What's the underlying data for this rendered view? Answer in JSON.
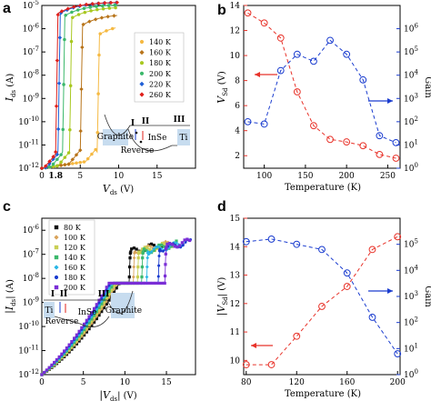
{
  "panel_labels": [
    "a",
    "b",
    "c",
    "d"
  ],
  "colors": {
    "140K": "#f5b942",
    "160K": "#b8741a",
    "180K": "#a8c820",
    "200K": "#3bb86b",
    "220K": "#1f5fd6",
    "260K": "#e0201b",
    "80K": "#111111",
    "100K": "#d9a35a",
    "120K": "#c9cf55",
    "red": "#e8332a",
    "blue": "#1a3ccf",
    "purple": "#7a2ed6",
    "cyan": "#29b6e6"
  },
  "chart_data": [
    {
      "id": "a",
      "type": "line",
      "ylabel": "I_ds (A)",
      "xlabel": "V_ds (V)",
      "y_scale": "log",
      "xlim": [
        0,
        20
      ],
      "ylim": [
        -12,
        -5
      ],
      "x_ticks": [
        "0",
        "5",
        "10",
        "15"
      ],
      "y_ticks": [
        "10^-12",
        "10^-11",
        "10^-10",
        "10^-9",
        "10^-8",
        "10^-7",
        "10^-6",
        "10^-5"
      ],
      "annotations": [
        "1.8"
      ],
      "inset_labels": [
        "Graphite",
        "InSe",
        "Ti",
        "I",
        "II",
        "III",
        "Reverse"
      ],
      "series": [
        {
          "name": "140 K",
          "jump_v": 7.2,
          "sat_start": -6.3
        },
        {
          "name": "160 K",
          "jump_v": 5.0,
          "sat_start": -5.9
        },
        {
          "name": "180 K",
          "jump_v": 3.6,
          "sat_start": -5.6
        },
        {
          "name": "200 K",
          "jump_v": 2.7,
          "sat_start": -5.5
        },
        {
          "name": "220 K",
          "jump_v": 2.1,
          "sat_start": -5.4
        },
        {
          "name": "260 K",
          "jump_v": 1.8,
          "sat_start": -5.4
        }
      ]
    },
    {
      "id": "b",
      "type": "line",
      "xlabel": "Temperature (K)",
      "ylabel_left": "V_Sd (V)",
      "ylabel_right": "Gain",
      "xlim": [
        75,
        265
      ],
      "ylim_left": [
        1,
        14
      ],
      "ylim_right": [
        0,
        7
      ],
      "x_ticks": [
        100,
        150,
        200,
        250
      ],
      "y_ticks_left": [
        2,
        4,
        6,
        8,
        10,
        12,
        14
      ],
      "y_ticks_right": [
        "10^0",
        "10^1",
        "10^2",
        "10^3",
        "10^4",
        "10^5",
        "10^6"
      ],
      "series": [
        {
          "name": "V_Sd",
          "axis": "left",
          "x": [
            80,
            100,
            120,
            140,
            160,
            180,
            200,
            220,
            240,
            260
          ],
          "y": [
            13.4,
            12.6,
            11.4,
            7.1,
            4.4,
            3.3,
            3.1,
            2.8,
            2.1,
            1.8
          ]
        },
        {
          "name": "Gain",
          "axis": "right",
          "x": [
            80,
            100,
            120,
            140,
            160,
            180,
            200,
            220,
            240,
            260
          ],
          "y": [
            2.0,
            1.9,
            4.2,
            4.9,
            4.6,
            5.5,
            4.9,
            3.8,
            1.4,
            1.1
          ]
        }
      ]
    },
    {
      "id": "c",
      "type": "line",
      "ylabel": "|I_ds| (A)",
      "xlabel": "|V_ds| (V)",
      "y_scale": "log",
      "xlim": [
        0,
        18.5
      ],
      "ylim": [
        -12,
        -5.5
      ],
      "x_ticks": [
        "0",
        "5",
        "10",
        "15"
      ],
      "y_ticks": [
        "10^-12",
        "10^-11",
        "10^-10",
        "10^-9",
        "10^-8",
        "10^-7",
        "10^-6"
      ],
      "inset_labels": [
        "Ti",
        "InSe",
        "Graphite",
        "I",
        "II",
        "III",
        "Reverse"
      ],
      "series": [
        {
          "name": "80 K",
          "jump_v": 10.5
        },
        {
          "name": "100 K",
          "jump_v": 11.0
        },
        {
          "name": "120 K",
          "jump_v": 11.5
        },
        {
          "name": "140 K",
          "jump_v": 12.0
        },
        {
          "name": "160 K",
          "jump_v": 12.6
        },
        {
          "name": "180 K",
          "jump_v": 14.0
        },
        {
          "name": "200 K",
          "jump_v": 14.8
        }
      ]
    },
    {
      "id": "d",
      "type": "line",
      "xlabel": "Temperature (K)",
      "ylabel_left": "|V_Sd| (V)",
      "ylabel_right": "Gain",
      "xlim": [
        78,
        202
      ],
      "ylim_left": [
        9.5,
        15
      ],
      "ylim_right": [
        0,
        6
      ],
      "x_ticks": [
        80,
        120,
        160,
        200
      ],
      "y_ticks_left": [
        10,
        11,
        12,
        13,
        14,
        15
      ],
      "y_ticks_right": [
        "10^0",
        "10^1",
        "10^2",
        "10^3",
        "10^4",
        "10^5"
      ],
      "series": [
        {
          "name": "|V_Sd|",
          "axis": "left",
          "x": [
            80,
            100,
            120,
            140,
            160,
            180,
            200
          ],
          "y": [
            9.85,
            9.85,
            10.85,
            11.9,
            12.6,
            13.9,
            14.35
          ]
        },
        {
          "name": "Gain",
          "axis": "right",
          "x": [
            80,
            100,
            120,
            140,
            160,
            180,
            200
          ],
          "y": [
            5.1,
            5.2,
            5.0,
            4.8,
            3.9,
            2.2,
            0.8
          ]
        }
      ]
    }
  ]
}
